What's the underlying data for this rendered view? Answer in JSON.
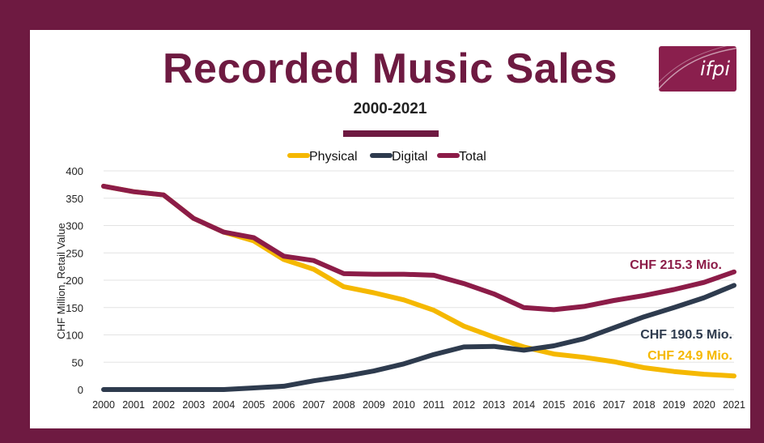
{
  "header": {
    "title": "Recorded Music Sales",
    "subtitle": "2000-2021",
    "logo_text": "ifpi"
  },
  "colors": {
    "frame": "#6e1a41",
    "physical": "#f5b800",
    "digital": "#2e3b4e",
    "total": "#8c1c48"
  },
  "chart_data": {
    "type": "line",
    "title": "Recorded Music Sales",
    "subtitle": "2000-2021",
    "xlabel": "",
    "ylabel": "CHF Million, Retail Value",
    "ylim": [
      0,
      400
    ],
    "yticks": [
      0,
      50,
      100,
      150,
      200,
      250,
      300,
      350,
      400
    ],
    "grid": true,
    "legend_position": "top",
    "x": [
      "2000",
      "2001",
      "2002",
      "2003",
      "2004",
      "2005",
      "2006",
      "2007",
      "2008",
      "2009",
      "2010",
      "2011",
      "2012",
      "2013",
      "2014",
      "2015",
      "2016",
      "2017",
      "2018",
      "2019",
      "2020",
      "2021"
    ],
    "series": [
      {
        "name": "Physical",
        "color": "#f5b800",
        "values": [
          372,
          362,
          356,
          313,
          288,
          272,
          238,
          220,
          188,
          177,
          164,
          145,
          116,
          96,
          78,
          65,
          59,
          51,
          40,
          33,
          28,
          24.9
        ]
      },
      {
        "name": "Digital",
        "color": "#2e3b4e",
        "values": [
          0,
          0,
          0,
          0,
          0,
          3,
          6,
          16,
          24,
          34,
          47,
          64,
          78,
          79,
          72,
          80,
          93,
          113,
          133,
          150,
          168,
          190.5
        ]
      },
      {
        "name": "Total",
        "color": "#8c1c48",
        "values": [
          372,
          362,
          356,
          313,
          288,
          278,
          244,
          236,
          212,
          211,
          211,
          209,
          194,
          175,
          150,
          146,
          152,
          163,
          172,
          183,
          196,
          215.3
        ]
      }
    ],
    "annotations": [
      {
        "series": "Total",
        "text": "CHF 215.3 Mio."
      },
      {
        "series": "Digital",
        "text": "CHF 190.5 Mio."
      },
      {
        "series": "Physical",
        "text": "CHF 24.9 Mio."
      }
    ]
  }
}
